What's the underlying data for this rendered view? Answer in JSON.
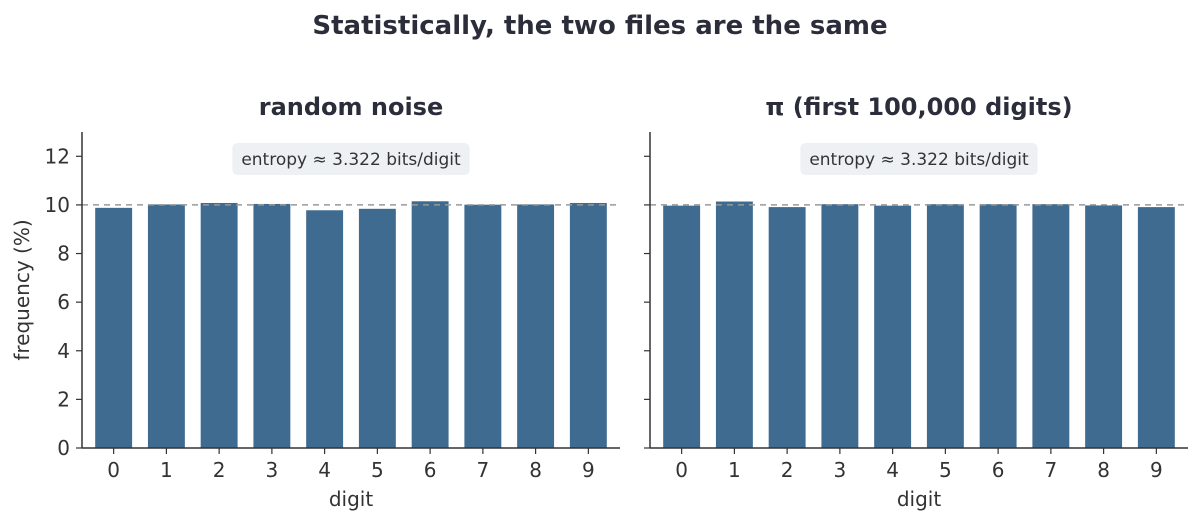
{
  "figure_title": "Statistically, the two files are the same",
  "colors": {
    "bar": "#3e6b8f",
    "text": "#2b2d3a",
    "axis": "#333333",
    "refline": "#999999",
    "annotation_bg": "#eef1f4"
  },
  "chart_data": [
    {
      "type": "bar",
      "title": "random noise",
      "xlabel": "digit",
      "ylabel": "frequency (%)",
      "categories": [
        "0",
        "1",
        "2",
        "3",
        "4",
        "5",
        "6",
        "7",
        "8",
        "9"
      ],
      "values": [
        9.88,
        10.02,
        10.08,
        10.04,
        9.78,
        9.84,
        10.15,
        10.01,
        10.02,
        10.08
      ],
      "ylim": [
        0,
        13
      ],
      "yticks": [
        0,
        2,
        4,
        6,
        8,
        10,
        12
      ],
      "reference_line": 10,
      "annotation": "entropy ≈ 3.322 bits/digit",
      "grid": false
    },
    {
      "type": "bar",
      "title": "π  (first 100,000 digits)",
      "xlabel": "digit",
      "ylabel": "",
      "categories": [
        "0",
        "1",
        "2",
        "3",
        "4",
        "5",
        "6",
        "7",
        "8",
        "9"
      ],
      "values": [
        9.97,
        10.14,
        9.91,
        10.03,
        9.97,
        10.03,
        10.03,
        10.03,
        9.98,
        9.91
      ],
      "ylim": [
        0,
        13
      ],
      "yticks": [
        0,
        2,
        4,
        6,
        8,
        10,
        12
      ],
      "show_ytick_labels": false,
      "reference_line": 10,
      "annotation": "entropy ≈ 3.322 bits/digit",
      "grid": false
    }
  ]
}
